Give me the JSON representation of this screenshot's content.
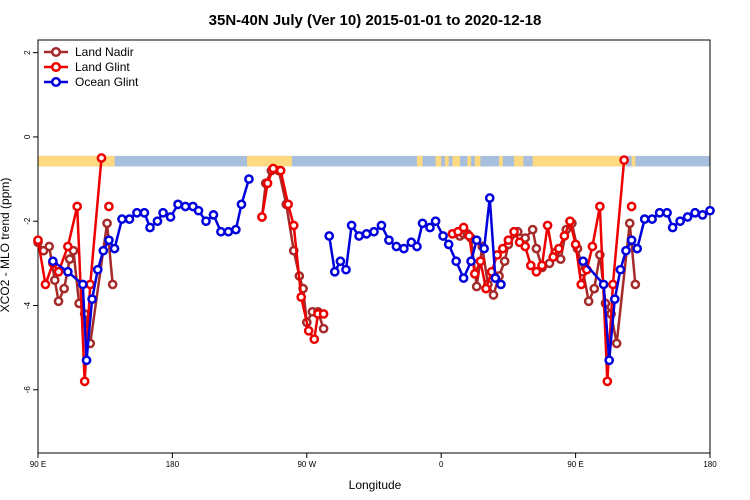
{
  "chart_data": {
    "type": "line",
    "title": "35N-40N July (Ver 10)   2015-01-01 to 2020-12-18",
    "xlabel": "Longitude",
    "ylabel": "XCO2 - MLO trend (ppm)",
    "xlim": [
      90,
      450
    ],
    "ylim": [
      -7.5,
      2.3
    ],
    "x_ticks": [
      {
        "value": 90,
        "label": "90 E"
      },
      {
        "value": 162,
        "label": "180"
      },
      {
        "value": 234,
        "label": "90 W"
      },
      {
        "value": 306,
        "label": "0"
      },
      {
        "value": 378,
        "label": "90 E"
      },
      {
        "value": 450,
        "label": "180"
      }
    ],
    "y_ticks": [
      {
        "value": 2,
        "label": "2"
      },
      {
        "value": 0,
        "label": "0"
      },
      {
        "value": -2,
        "label": "-2"
      },
      {
        "value": -4,
        "label": "-4"
      },
      {
        "value": -6,
        "label": "-6"
      }
    ],
    "legend_position": "top-left",
    "series": [
      {
        "name": "Land Nadir",
        "color": "#a52a2a",
        "segments": [
          [
            [
              90,
              -2.5
            ],
            [
              93,
              -2.7
            ],
            [
              96,
              -2.6
            ],
            [
              99,
              -3.4
            ],
            [
              101,
              -3.9
            ],
            [
              104,
              -3.6
            ],
            [
              107,
              -2.9
            ],
            [
              109,
              -2.7
            ],
            [
              112,
              -3.95
            ],
            [
              115,
              -4.2
            ],
            [
              118,
              -4.9
            ],
            [
              127,
              -2.05
            ],
            [
              130,
              -3.5
            ]
          ],
          [
            [
              210,
              -1.9
            ],
            [
              212,
              -1.1
            ],
            [
              215,
              -0.8
            ],
            [
              219,
              -0.8
            ],
            [
              223,
              -1.6
            ],
            [
              227,
              -2.7
            ],
            [
              230,
              -3.3
            ],
            [
              232,
              -3.6
            ],
            [
              234,
              -4.4
            ],
            [
              237,
              -4.15
            ],
            [
              240,
              -4.15
            ],
            [
              243,
              -4.55
            ]
          ],
          [
            [
              316,
              -2.35
            ],
            [
              318,
              -2.3
            ],
            [
              320,
              -2.3
            ],
            [
              322,
              -2.4
            ],
            [
              325,
              -3.55
            ],
            [
              328,
              -2.6
            ],
            [
              331,
              -3.5
            ],
            [
              334,
              -3.75
            ],
            [
              337,
              -3.3
            ],
            [
              340,
              -2.95
            ],
            [
              342,
              -2.55
            ],
            [
              347,
              -2.25
            ],
            [
              351,
              -2.4
            ],
            [
              355,
              -2.2
            ],
            [
              357,
              -2.65
            ],
            [
              360,
              -3.1
            ],
            [
              364,
              -3.0
            ],
            [
              367,
              -2.75
            ],
            [
              370,
              -2.9
            ],
            [
              373,
              -2.2
            ],
            [
              376,
              -2.05
            ],
            [
              379,
              -2.65
            ],
            [
              382,
              -3.2
            ],
            [
              385,
              -3.9
            ],
            [
              388,
              -3.6
            ],
            [
              391,
              -2.8
            ],
            [
              394,
              -3.95
            ],
            [
              397,
              -4.2
            ],
            [
              400,
              -4.9
            ],
            [
              407,
              -2.05
            ],
            [
              410,
              -3.5
            ]
          ]
        ]
      },
      {
        "name": "Land Glint",
        "color": "#ee0000",
        "segments": [
          [
            [
              90,
              -2.45
            ],
            [
              94,
              -3.5
            ],
            [
              98,
              -3.0
            ],
            [
              101,
              -3.2
            ],
            [
              106,
              -2.6
            ],
            [
              111,
              -1.65
            ],
            [
              115,
              -5.8
            ],
            [
              118,
              -3.5
            ],
            [
              124,
              -0.5
            ]
          ],
          [
            [
              128,
              -1.65
            ]
          ],
          [
            [
              210,
              -1.9
            ],
            [
              213,
              -1.1
            ],
            [
              216,
              -0.75
            ],
            [
              220,
              -0.8
            ],
            [
              224,
              -1.6
            ],
            [
              227,
              -2.1
            ],
            [
              231,
              -3.8
            ],
            [
              235,
              -4.6
            ],
            [
              238,
              -4.8
            ],
            [
              240,
              -4.2
            ],
            [
              243,
              -4.2
            ]
          ],
          [
            [
              312,
              -2.3
            ],
            [
              315,
              -2.25
            ],
            [
              318,
              -2.15
            ],
            [
              321,
              -2.35
            ],
            [
              324,
              -3.25
            ],
            [
              327,
              -2.95
            ],
            [
              330,
              -3.6
            ],
            [
              333,
              -3.2
            ],
            [
              336,
              -2.8
            ],
            [
              339,
              -2.65
            ],
            [
              342,
              -2.45
            ],
            [
              345,
              -2.25
            ],
            [
              348,
              -2.5
            ],
            [
              351,
              -2.6
            ],
            [
              354,
              -3.05
            ],
            [
              357,
              -3.2
            ],
            [
              360,
              -3.05
            ],
            [
              363,
              -2.1
            ],
            [
              366,
              -2.85
            ],
            [
              369,
              -2.65
            ],
            [
              372,
              -2.35
            ],
            [
              375,
              -2.0
            ],
            [
              378,
              -2.55
            ],
            [
              381,
              -3.5
            ],
            [
              384,
              -3.15
            ],
            [
              387,
              -2.6
            ],
            [
              391,
              -1.65
            ],
            [
              395,
              -5.8
            ],
            [
              398,
              -3.5
            ],
            [
              404,
              -0.55
            ]
          ],
          [
            [
              408,
              -1.65
            ]
          ]
        ]
      },
      {
        "name": "Ocean Glint",
        "color": "#0000dd",
        "segments": [
          [
            [
              98,
              -2.95
            ],
            [
              106,
              -3.2
            ],
            [
              114,
              -3.5
            ],
            [
              116,
              -5.3
            ],
            [
              119,
              -3.85
            ],
            [
              122,
              -3.15
            ],
            [
              125,
              -2.7
            ],
            [
              128,
              -2.45
            ],
            [
              131,
              -2.65
            ],
            [
              135,
              -1.95
            ],
            [
              139,
              -1.95
            ],
            [
              143,
              -1.8
            ],
            [
              147,
              -1.8
            ],
            [
              150,
              -2.15
            ],
            [
              154,
              -2.0
            ],
            [
              157,
              -1.8
            ],
            [
              161,
              -1.9
            ],
            [
              165,
              -1.6
            ],
            [
              169,
              -1.65
            ],
            [
              173,
              -1.65
            ],
            [
              176,
              -1.75
            ],
            [
              180,
              -2.0
            ],
            [
              184,
              -1.85
            ],
            [
              188,
              -2.25
            ],
            [
              192,
              -2.25
            ],
            [
              196,
              -2.2
            ],
            [
              199,
              -1.6
            ],
            [
              203,
              -1.0
            ]
          ],
          [
            [
              246,
              -2.35
            ],
            [
              249,
              -3.2
            ],
            [
              252,
              -2.95
            ],
            [
              255,
              -3.15
            ],
            [
              258,
              -2.1
            ],
            [
              262,
              -2.35
            ],
            [
              266,
              -2.3
            ],
            [
              270,
              -2.25
            ],
            [
              274,
              -2.1
            ],
            [
              278,
              -2.45
            ],
            [
              282,
              -2.6
            ],
            [
              286,
              -2.65
            ],
            [
              290,
              -2.5
            ],
            [
              293,
              -2.6
            ],
            [
              296,
              -2.05
            ],
            [
              300,
              -2.15
            ],
            [
              303,
              -2.0
            ],
            [
              307,
              -2.35
            ],
            [
              310,
              -2.55
            ],
            [
              314,
              -2.95
            ],
            [
              318,
              -3.35
            ],
            [
              322,
              -2.95
            ],
            [
              325,
              -2.45
            ],
            [
              329,
              -2.65
            ],
            [
              332,
              -1.45
            ],
            [
              335,
              -3.35
            ],
            [
              338,
              -3.5
            ]
          ],
          [
            [
              382,
              -2.95
            ],
            [
              393,
              -3.5
            ],
            [
              396,
              -5.3
            ],
            [
              399,
              -3.85
            ],
            [
              402,
              -3.15
            ],
            [
              405,
              -2.7
            ],
            [
              408,
              -2.45
            ],
            [
              411,
              -2.65
            ],
            [
              415,
              -1.95
            ],
            [
              419,
              -1.95
            ],
            [
              423,
              -1.8
            ],
            [
              427,
              -1.8
            ],
            [
              430,
              -2.15
            ],
            [
              434,
              -2.0
            ],
            [
              438,
              -1.9
            ],
            [
              442,
              -1.8
            ],
            [
              446,
              -1.85
            ],
            [
              450,
              -1.75
            ]
          ]
        ]
      }
    ],
    "surface_bar": {
      "y_range": [
        -0.7,
        -0.45
      ],
      "ocean_color": "#a7bedd",
      "land_color": "#ffd980",
      "land_ranges": [
        [
          90,
          131
        ],
        [
          202,
          226
        ],
        [
          293,
          296
        ],
        [
          303,
          306
        ],
        [
          308,
          310
        ],
        [
          312,
          316
        ],
        [
          320,
          322
        ],
        [
          324,
          327
        ],
        [
          337,
          339
        ],
        [
          345,
          350
        ],
        [
          355,
          405
        ],
        [
          408,
          410
        ]
      ]
    }
  }
}
